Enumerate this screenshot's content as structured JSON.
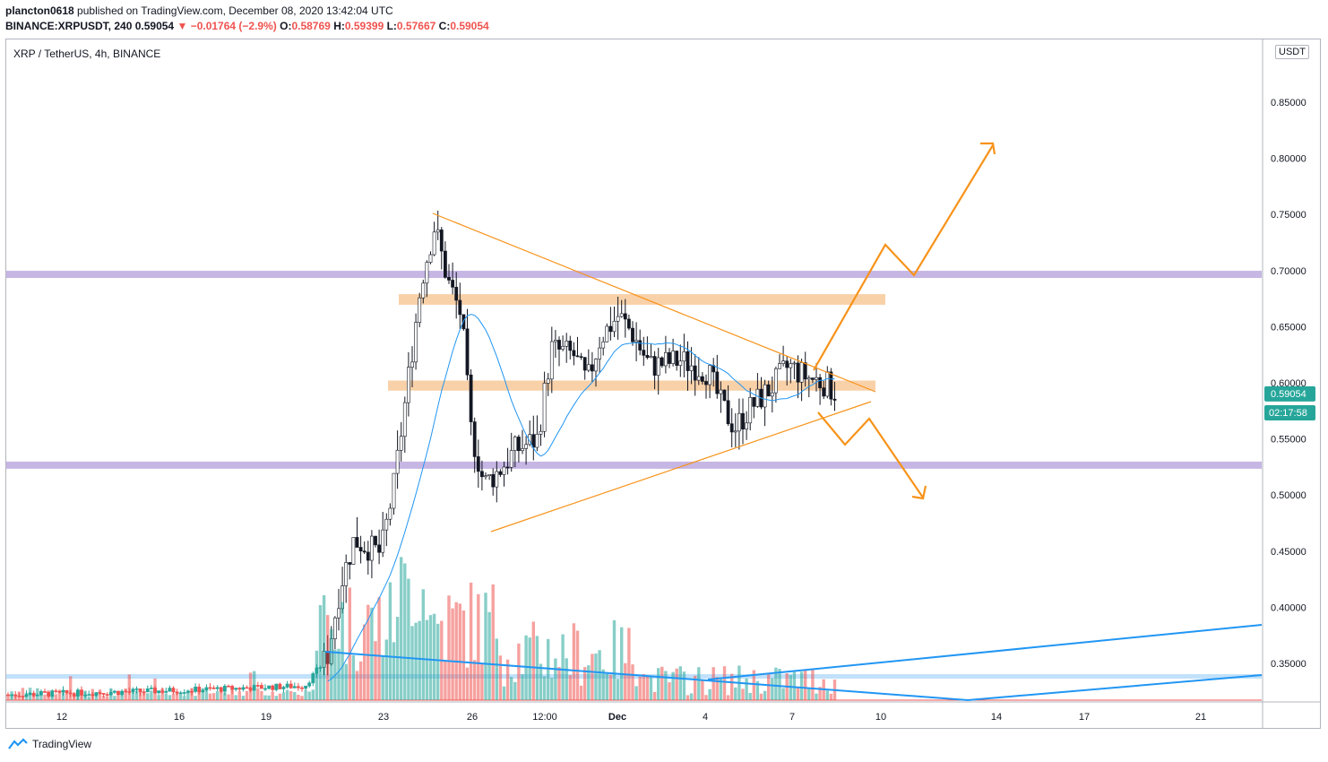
{
  "header": {
    "publisher": "plancton0618",
    "published_text": "published on TradingView.com, December 08, 2020 13:42:04 UTC",
    "symbol": "BINANCE:XRPUSDT, 240",
    "last": "0.59054",
    "arrow": "▼",
    "change": "−0.01764 (−2.9%)",
    "o_label": "O:",
    "o_val": "0.58769",
    "h_label": "H:",
    "h_val": "0.59399",
    "l_label": "L:",
    "l_val": "0.57667",
    "c_label": "C:",
    "c_val": "0.59054"
  },
  "legend": "XRP / TetherUS, 4h, BINANCE",
  "axis_unit": "USDT",
  "price_tag": "0.59054",
  "countdown_tag": "02:17:58",
  "footer_brand": "TradingView",
  "colors": {
    "up": "#26a69a",
    "down": "#ef5350",
    "ma": "#2196f3",
    "zone": "#f8c594",
    "level": "#b39ddb",
    "pattern": "#f7931a",
    "trend": "#2196f3"
  },
  "chart_data": {
    "type": "candlestick",
    "title": "XRP / TetherUS, 4h, BINANCE",
    "y_ticks": [
      "0.85000",
      "0.80000",
      "0.75000",
      "0.70000",
      "0.65000",
      "0.60000",
      "0.55000",
      "0.50000",
      "0.45000",
      "0.40000",
      "0.35000"
    ],
    "x_ticks": [
      "12",
      "16",
      "19",
      "23",
      "26",
      "12:00",
      "Dec",
      "4",
      "7",
      "10",
      "14",
      "17",
      "21"
    ],
    "ylim": [
      0.312,
      0.89
    ],
    "horizontal_levels": [
      0.6966,
      0.5266
    ],
    "zones": [
      [
        0.679,
        0.6695
      ],
      [
        0.602,
        0.593
      ]
    ],
    "last_price": 0.59054
  }
}
